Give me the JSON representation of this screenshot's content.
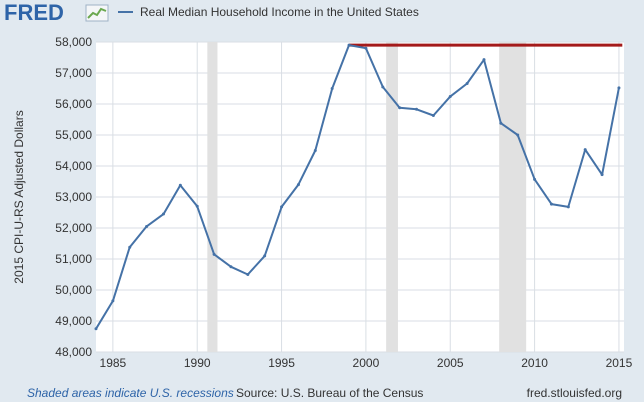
{
  "brand": {
    "name": "FRED"
  },
  "footer": {
    "note": "Shaded areas indicate U.S. recessions",
    "source": "Source: U.S. Bureau of the Census",
    "site": "fred.stlouisfed.org"
  },
  "colors": {
    "background": "#e1e9f0",
    "plot": "#ffffff",
    "grid": "#d9dee4",
    "line": "#4572a7",
    "recession": "#e1e1e1",
    "annotation": "#a41a1a",
    "brand_blue": "#2e64a8",
    "footer_link": "#2e64a8"
  },
  "chart_data": {
    "type": "line",
    "ylabel": "2015 CPI-U-RS Adjusted Dollars",
    "xlim": [
      1984,
      2015.3
    ],
    "ylim": [
      48000,
      58000
    ],
    "xticks": [
      1985,
      1990,
      1995,
      2000,
      2005,
      2010,
      2015
    ],
    "yticks": [
      48000,
      49000,
      50000,
      51000,
      52000,
      53000,
      54000,
      55000,
      56000,
      57000,
      58000
    ],
    "ytick_labels": [
      "48,000",
      "49,000",
      "50,000",
      "51,000",
      "52,000",
      "53,000",
      "54,000",
      "55,000",
      "56,000",
      "57,000",
      "58,000"
    ],
    "grid": true,
    "legend": "top",
    "series": [
      {
        "name": "Real Median Household Income in the United States",
        "x": [
          1984,
          1985,
          1986,
          1987,
          1988,
          1989,
          1990,
          1991,
          1992,
          1993,
          1994,
          1995,
          1996,
          1997,
          1998,
          1999,
          2000,
          2001,
          2002,
          2003,
          2004,
          2005,
          2006,
          2007,
          2008,
          2009,
          2010,
          2011,
          2012,
          2013,
          2014,
          2015
        ],
        "values": [
          48750,
          49650,
          51380,
          52050,
          52450,
          53380,
          52700,
          51150,
          50750,
          50500,
          51100,
          52680,
          53400,
          54500,
          56500,
          57900,
          57800,
          56550,
          55880,
          55830,
          55630,
          56240,
          56660,
          57430,
          55380,
          55000,
          53570,
          52770,
          52680,
          54530,
          53720,
          56520
        ]
      }
    ],
    "recessions": [
      [
        1990.6,
        1991.2
      ],
      [
        2001.2,
        2001.9
      ],
      [
        2007.9,
        2009.5
      ]
    ],
    "annotation_line": {
      "x": [
        1999,
        2015.2
      ],
      "y": 57900
    }
  }
}
